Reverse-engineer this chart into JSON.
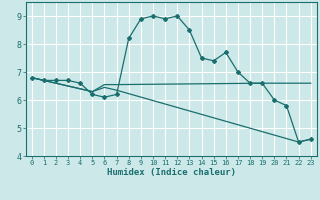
{
  "title": "",
  "xlabel": "Humidex (Indice chaleur)",
  "xlim": [
    -0.5,
    23.5
  ],
  "ylim": [
    4,
    9.5
  ],
  "yticks": [
    4,
    5,
    6,
    7,
    8,
    9
  ],
  "xticks": [
    0,
    1,
    2,
    3,
    4,
    5,
    6,
    7,
    8,
    9,
    10,
    11,
    12,
    13,
    14,
    15,
    16,
    17,
    18,
    19,
    20,
    21,
    22,
    23
  ],
  "bg_color": "#cde8e8",
  "grid_color": "#ffffff",
  "line_color": "#1a6e6e",
  "lines": [
    {
      "x": [
        0,
        1,
        2,
        3,
        4,
        5,
        6,
        7,
        8,
        9,
        10,
        11,
        12,
        13,
        14,
        15,
        16,
        17,
        18,
        19,
        20,
        21,
        22,
        23
      ],
      "y": [
        6.8,
        6.7,
        6.7,
        6.7,
        6.6,
        6.2,
        6.1,
        6.2,
        8.2,
        8.9,
        9.0,
        8.9,
        9.0,
        8.5,
        7.5,
        7.4,
        7.7,
        7.0,
        6.6,
        6.6,
        6.0,
        5.8,
        4.5,
        4.6
      ],
      "marker": "D",
      "markersize": 2.0
    },
    {
      "x": [
        0,
        5,
        6,
        7,
        19,
        23
      ],
      "y": [
        6.8,
        6.3,
        6.55,
        6.55,
        6.6,
        6.6
      ],
      "marker": null,
      "markersize": 0
    },
    {
      "x": [
        0,
        5,
        6,
        7,
        22,
        23
      ],
      "y": [
        6.8,
        6.3,
        6.45,
        6.35,
        4.5,
        4.6
      ],
      "marker": null,
      "markersize": 0
    }
  ]
}
